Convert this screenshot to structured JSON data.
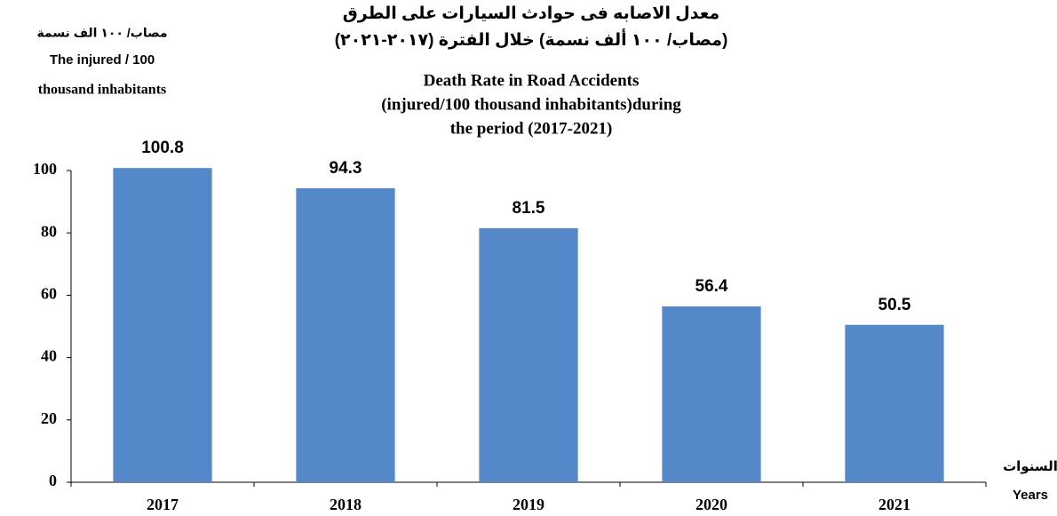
{
  "chart_data": {
    "type": "bar",
    "title_ar": [
      "معدل الاصابه فى حوادث السيارات على الطرق",
      "(مصاب/ ١٠٠ ألف نسمة) خلال الفترة (٢٠١٧-٢٠٢١)"
    ],
    "title": [
      "Death Rate in Road Accidents",
      "(injured/100 thousand  inhabitants)during",
      "the period (2017-2021)"
    ],
    "y_label": [
      "مصاب/ ١٠٠ الف نسمة",
      "The injured / 100",
      "thousand inhabitants"
    ],
    "x_label": [
      "السنوات",
      "Years"
    ],
    "categories": [
      "2017",
      "2018",
      "2019",
      "2020",
      "2021"
    ],
    "values": [
      100.8,
      94.3,
      81.5,
      56.4,
      50.5
    ],
    "color": "#5588c8",
    "ylim": [
      0,
      100
    ],
    "yticks": [
      0,
      20,
      40,
      60,
      80,
      100
    ]
  }
}
